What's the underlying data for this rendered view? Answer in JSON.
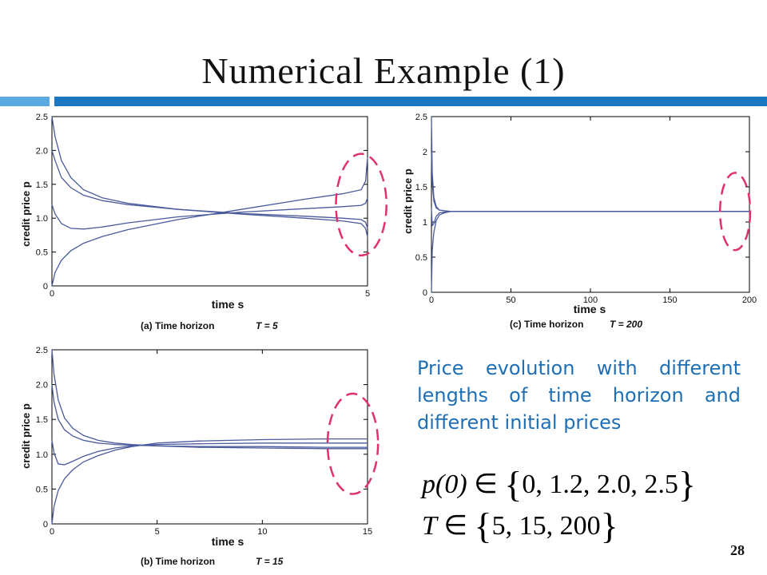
{
  "slide": {
    "title": "Numerical Example (1)",
    "description": "Price evolution with different lengths of time horizon and different initial prices",
    "formula_p": {
      "lhs": "p(0)",
      "op": "∈",
      "set": "0, 1.2, 2.0, 2.5"
    },
    "formula_T": {
      "lhs": "T",
      "op": "∈",
      "set": "5, 15, 200"
    },
    "page_number": "28",
    "accent_color": "#1a78c2",
    "highlight_color": "#e0306f",
    "text_color": "#1f6fb5"
  },
  "chart_data": [
    {
      "id": "a",
      "type": "line",
      "caption": "(a)  Time horizon",
      "caption_math": "T = 5",
      "xlabel": "time s",
      "ylabel": "credit price p",
      "xlim": [
        0,
        5
      ],
      "ylim": [
        0,
        2.5
      ],
      "xticks": [
        "0",
        "5"
      ],
      "yticks": [
        "0",
        "0.5",
        "1.0",
        "1.5",
        "2.0",
        "2.5"
      ],
      "series": [
        {
          "x": [
            0,
            0.05,
            0.15,
            0.3,
            0.5,
            0.8,
            1.2,
            2,
            3,
            4,
            4.6,
            4.9,
            4.97,
            5
          ],
          "values": [
            2.5,
            2.2,
            1.85,
            1.6,
            1.42,
            1.3,
            1.22,
            1.13,
            1.06,
            1.0,
            0.96,
            0.92,
            0.85,
            0.72
          ]
        },
        {
          "x": [
            0,
            0.05,
            0.15,
            0.3,
            0.5,
            0.8,
            1.2,
            2,
            3,
            4,
            4.6,
            4.9,
            4.97,
            5
          ],
          "values": [
            2.0,
            1.85,
            1.6,
            1.45,
            1.34,
            1.26,
            1.2,
            1.13,
            1.07,
            1.03,
            1.0,
            0.98,
            0.94,
            0.85
          ]
        },
        {
          "x": [
            0,
            0.05,
            0.15,
            0.3,
            0.5,
            0.8,
            1.2,
            2,
            3,
            4,
            4.6,
            4.9,
            4.97,
            5
          ],
          "values": [
            1.2,
            1.06,
            0.92,
            0.85,
            0.84,
            0.87,
            0.93,
            1.02,
            1.09,
            1.14,
            1.17,
            1.19,
            1.22,
            1.3
          ]
        },
        {
          "x": [
            0,
            0.05,
            0.15,
            0.3,
            0.5,
            0.8,
            1.2,
            2,
            3,
            4,
            4.6,
            4.9,
            4.97,
            5
          ],
          "values": [
            0,
            0.2,
            0.38,
            0.52,
            0.63,
            0.73,
            0.83,
            0.98,
            1.13,
            1.28,
            1.36,
            1.42,
            1.55,
            1.9
          ]
        }
      ],
      "highlight": {
        "cx": 4.9,
        "cy": 1.2,
        "rx": 0.4,
        "ry": 0.75
      }
    },
    {
      "id": "b",
      "type": "line",
      "caption": "(b)  Time horizon",
      "caption_math": "T = 15",
      "xlabel": "time s",
      "ylabel": "credit price p",
      "xlim": [
        0,
        15
      ],
      "ylim": [
        0,
        2.5
      ],
      "xticks": [
        "0",
        "5",
        "10",
        "15"
      ],
      "yticks": [
        "0",
        "0.5",
        "1.0",
        "1.5",
        "2.0",
        "2.5"
      ],
      "series": [
        {
          "x": [
            0,
            0.1,
            0.3,
            0.6,
            1,
            1.5,
            2.2,
            3,
            3.8,
            5,
            7,
            10,
            13,
            15
          ],
          "values": [
            2.5,
            2.15,
            1.78,
            1.52,
            1.37,
            1.27,
            1.2,
            1.16,
            1.14,
            1.12,
            1.1,
            1.09,
            1.08,
            1.08
          ]
        },
        {
          "x": [
            0,
            0.1,
            0.3,
            0.6,
            1,
            1.5,
            2.2,
            3,
            3.8,
            5,
            7,
            10,
            13,
            15
          ],
          "values": [
            2.0,
            1.75,
            1.5,
            1.35,
            1.26,
            1.2,
            1.16,
            1.14,
            1.13,
            1.12,
            1.11,
            1.11,
            1.1,
            1.1
          ]
        },
        {
          "x": [
            0,
            0.1,
            0.3,
            0.6,
            1,
            1.5,
            2.2,
            3,
            3.8,
            5,
            7,
            10,
            13,
            15
          ],
          "values": [
            1.2,
            1.02,
            0.86,
            0.85,
            0.9,
            0.97,
            1.04,
            1.09,
            1.12,
            1.14,
            1.15,
            1.16,
            1.16,
            1.16
          ]
        },
        {
          "x": [
            0,
            0.1,
            0.3,
            0.6,
            1,
            1.5,
            2.2,
            3,
            3.8,
            5,
            7,
            10,
            13,
            15
          ],
          "values": [
            0,
            0.25,
            0.48,
            0.65,
            0.78,
            0.89,
            0.98,
            1.06,
            1.11,
            1.16,
            1.19,
            1.21,
            1.22,
            1.22
          ]
        }
      ],
      "highlight": {
        "cx": 14.3,
        "cy": 1.15,
        "rx": 1.2,
        "ry": 0.72
      }
    },
    {
      "id": "c",
      "type": "line",
      "caption": "(c)  Time horizon",
      "caption_math": "T = 200",
      "xlabel": "time s",
      "ylabel": "credit price p",
      "xlim": [
        0,
        200
      ],
      "ylim": [
        0,
        2.5
      ],
      "xticks": [
        "0",
        "50",
        "100",
        "150",
        "200"
      ],
      "yticks": [
        "0",
        "0.5",
        "1",
        "1.5",
        "2",
        "2.5"
      ],
      "series": [
        {
          "x": [
            0,
            0.5,
            1.5,
            3,
            5,
            8,
            12,
            200
          ],
          "values": [
            2.5,
            1.7,
            1.35,
            1.22,
            1.17,
            1.16,
            1.15,
            1.15
          ]
        },
        {
          "x": [
            0,
            0.5,
            1.5,
            3,
            5,
            8,
            12,
            200
          ],
          "values": [
            2.0,
            1.55,
            1.3,
            1.2,
            1.17,
            1.16,
            1.15,
            1.15
          ]
        },
        {
          "x": [
            0,
            0.5,
            1.5,
            3,
            5,
            8,
            12,
            200
          ],
          "values": [
            1.2,
            0.95,
            0.98,
            1.08,
            1.13,
            1.14,
            1.15,
            1.15
          ]
        },
        {
          "x": [
            0,
            0.5,
            1.5,
            3,
            5,
            8,
            12,
            200
          ],
          "values": [
            0,
            0.6,
            0.85,
            1.02,
            1.1,
            1.13,
            1.15,
            1.15
          ]
        }
      ],
      "highlight": {
        "cx": 191,
        "cy": 1.15,
        "rx": 9.5,
        "ry": 0.55
      }
    }
  ]
}
